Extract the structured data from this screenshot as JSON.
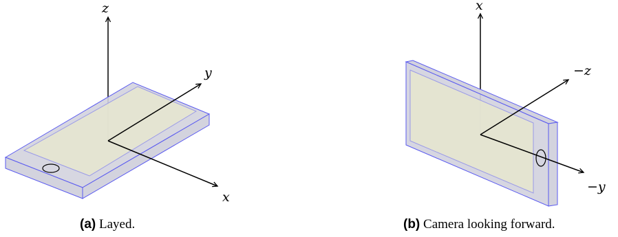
{
  "panels": [
    {
      "id": "a",
      "caption_tag": "(a)",
      "caption_text": "Layed.",
      "axes": {
        "up": "z",
        "right_up": "y",
        "right_down": "x"
      }
    },
    {
      "id": "b",
      "caption_tag": "(b)",
      "caption_text": "Camera looking forward.",
      "axes": {
        "up": "x",
        "right_up": "−z",
        "right_down": "−y"
      }
    }
  ],
  "colors": {
    "phone_body": "#d3d3de",
    "screen": "#e6e6cf",
    "outline": "#5a5af0",
    "axis": "#000000"
  }
}
